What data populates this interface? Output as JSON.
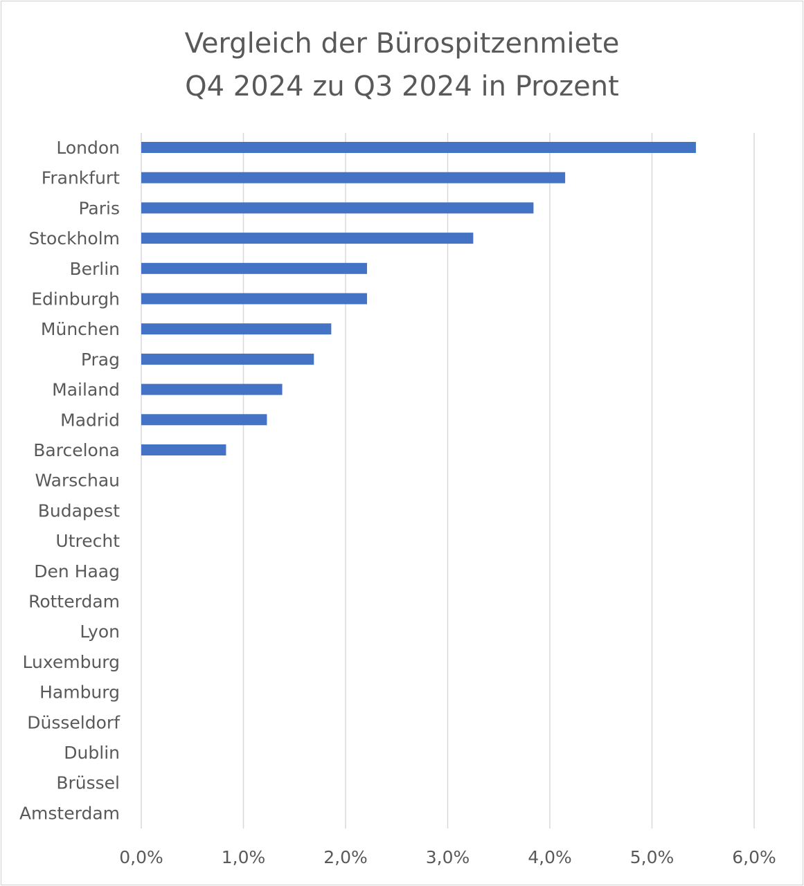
{
  "chart_data": {
    "type": "bar",
    "orientation": "horizontal",
    "title_lines": [
      "Vergleich der Bürospitzenmiete",
      "Q4 2024 zu Q3 2024 in Prozent"
    ],
    "categories": [
      "London",
      "Frankfurt",
      "Paris",
      "Stockholm",
      "Berlin",
      "Edinburgh",
      "München",
      "Prag",
      "Mailand",
      "Madrid",
      "Barcelona",
      "Warschau",
      "Budapest",
      "Utrecht",
      "Den Haag",
      "Rotterdam",
      "Lyon",
      "Luxemburg",
      "Hamburg",
      "Düsseldorf",
      "Dublin",
      "Brüssel",
      "Amsterdam"
    ],
    "values": [
      5.43,
      4.15,
      3.84,
      3.25,
      2.21,
      2.21,
      1.86,
      1.69,
      1.38,
      1.23,
      0.83,
      0,
      0,
      0,
      0,
      0,
      0,
      0,
      0,
      0,
      0,
      0,
      0
    ],
    "xlim": [
      0,
      6
    ],
    "xticks": [
      0,
      1,
      2,
      3,
      4,
      5,
      6
    ],
    "xtick_labels": [
      "0,0%",
      "1,0%",
      "2,0%",
      "3,0%",
      "4,0%",
      "5,0%",
      "6,0%"
    ],
    "grid": "vertical",
    "bar_color": "#4472C4",
    "gridline_color": "#d9d9d9",
    "text_color": "#595959",
    "legend": "none"
  }
}
